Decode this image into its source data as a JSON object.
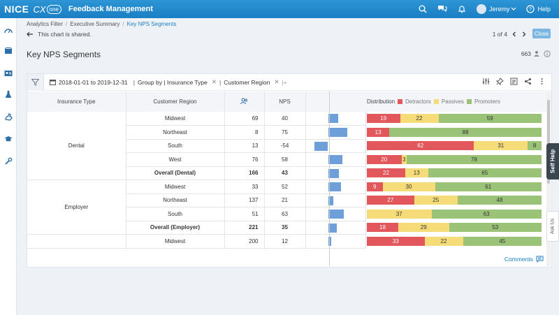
{
  "header": {
    "brand": "NICE",
    "cx": "CX",
    "one": "one",
    "app_title": "Feedback Management",
    "user_name": "Jeremy",
    "help_label": "Help"
  },
  "breadcrumb": {
    "items": [
      "Analytics Filter",
      "Executive Summary",
      "Key NPS Segments"
    ]
  },
  "shared_message": "This chart is shared.",
  "pager": {
    "label": "1 of 4"
  },
  "close_label": "Close",
  "page_title": "Key NPS Segments",
  "record_count": "663",
  "filters": {
    "date_range": "2018-01-01 to 2019-12-31",
    "group_by_label": "Group by | Insurance Type",
    "group_by_second": "Customer Region"
  },
  "table": {
    "headers": {
      "insurance_type": "Insurance Type",
      "customer_region": "Customer Region",
      "nps": "NPS"
    },
    "distribution_label": "Distribution",
    "legend": [
      {
        "name": "Detractors",
        "color": "#e1575c"
      },
      {
        "name": "Passives",
        "color": "#f5dc79"
      },
      {
        "name": "Promoters",
        "color": "#9bc378"
      }
    ],
    "groups": [
      {
        "type": "Dental",
        "rows": [
          {
            "region": "Midwest",
            "count": "69",
            "nps": "40",
            "detractors": 19,
            "passives": 22,
            "promoters": 59,
            "overall": false
          },
          {
            "region": "Northeast",
            "count": "8",
            "nps": "75",
            "detractors": 13,
            "passives": 0,
            "promoters": 88,
            "overall": false
          },
          {
            "region": "South",
            "count": "13",
            "nps": "-54",
            "detractors": 62,
            "passives": 31,
            "promoters": 8,
            "overall": false
          },
          {
            "region": "West",
            "count": "76",
            "nps": "58",
            "detractors": 20,
            "passives": 3,
            "promoters": 78,
            "overall": false
          },
          {
            "region": "Overall (Dental)",
            "count": "166",
            "nps": "43",
            "detractors": 22,
            "passives": 13,
            "promoters": 65,
            "overall": true
          }
        ]
      },
      {
        "type": "Employer",
        "rows": [
          {
            "region": "Midwest",
            "count": "33",
            "nps": "52",
            "detractors": 9,
            "passives": 30,
            "promoters": 61,
            "overall": false
          },
          {
            "region": "Northeast",
            "count": "137",
            "nps": "21",
            "detractors": 27,
            "passives": 25,
            "promoters": 48,
            "overall": false
          },
          {
            "region": "South",
            "count": "51",
            "nps": "63",
            "detractors": 0,
            "passives": 37,
            "promoters": 63,
            "overall": false
          },
          {
            "region": "Overall (Employer)",
            "count": "221",
            "nps": "35",
            "detractors": 18,
            "passives": 29,
            "promoters": 53,
            "overall": true
          }
        ]
      },
      {
        "type": "",
        "rows": [
          {
            "region": "Midwest",
            "count": "200",
            "nps": "12",
            "detractors": 33,
            "passives": 22,
            "promoters": 45,
            "overall": false
          }
        ]
      }
    ]
  },
  "comments_label": "Comments",
  "self_help_label": "Self Help",
  "ask_us_label": "Ask Us"
}
